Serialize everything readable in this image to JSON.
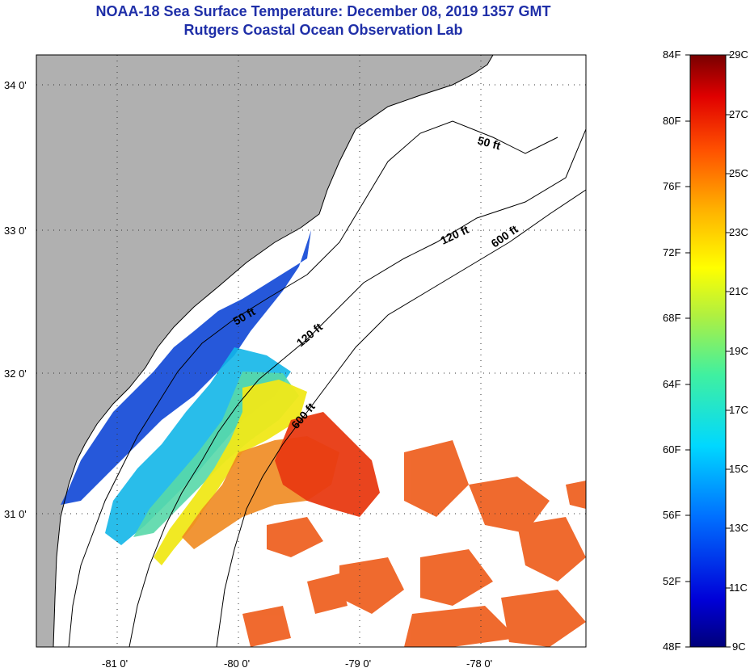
{
  "title_line1": "NOAA-18 Sea Surface Temperature:  December 08, 2019 1357 GMT",
  "title_line2": "Rutgers Coastal Ocean Observation Lab",
  "map": {
    "lat_labels": [
      "34 0'",
      "33 0'",
      "32 0'",
      "31 0'"
    ],
    "lon_labels": [
      "-81 0'",
      "-80 0'",
      "-79 0'",
      "-78 0'"
    ],
    "contour_labels": [
      "50 ft",
      "120 ft",
      "600 ft",
      "50 ft",
      "120 ft",
      "600 ft"
    ]
  },
  "colorbar": {
    "f_labels": [
      "84F",
      "80F",
      "76F",
      "72F",
      "68F",
      "64F",
      "60F",
      "56F",
      "52F",
      "48F"
    ],
    "c_labels": [
      "29C",
      "27C",
      "25C",
      "23C",
      "21C",
      "19C",
      "17C",
      "15C",
      "13C",
      "11C",
      "9C"
    ]
  },
  "colors": {
    "title": "#1f2fa8",
    "land": "#b0b0b0",
    "cold": "#1a4fd8",
    "warm": "#e83a12"
  }
}
